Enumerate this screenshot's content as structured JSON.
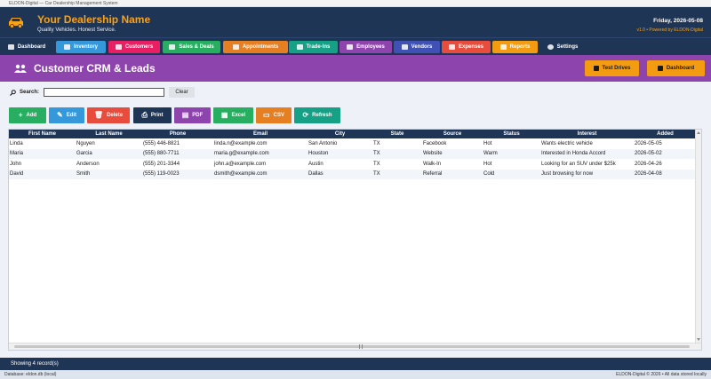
{
  "window": {
    "title": "ELDON-Digital — Car Dealership Management System"
  },
  "header": {
    "title": "Your Dealership Name",
    "tagline": "Quality Vehicles. Honest Service.",
    "date": "Friday, 2026-05-08",
    "version": "v1.0 • Powered by ELDON-Digital"
  },
  "nav": [
    {
      "label": "Dashboard",
      "color": "#1f3556"
    },
    {
      "label": "Inventory",
      "color": "#3498db"
    },
    {
      "label": "Customers",
      "color": "#e91e63"
    },
    {
      "label": "Sales & Deals",
      "color": "#27ae60"
    },
    {
      "label": "Appointments",
      "color": "#e67e22"
    },
    {
      "label": "Trade-Ins",
      "color": "#16a085"
    },
    {
      "label": "Employees",
      "color": "#8e44ad"
    },
    {
      "label": "Vendors",
      "color": "#3f51b5"
    },
    {
      "label": "Expenses",
      "color": "#e74c3c"
    },
    {
      "label": "Reports",
      "color": "#f39c12"
    },
    {
      "label": "Settings",
      "color": "#1f3556"
    }
  ],
  "page": {
    "title": "Customer CRM & Leads",
    "test_drives_label": "Test Drives",
    "dashboard_label": "Dashboard"
  },
  "search": {
    "label": "Search:",
    "value": "",
    "clear_label": "Clear"
  },
  "actions": [
    {
      "label": "Add",
      "icon": "+",
      "color": "#27ae60"
    },
    {
      "label": "Edit",
      "icon": "✎",
      "color": "#3498db"
    },
    {
      "label": "Delete",
      "icon": "🗑",
      "color": "#e74c3c"
    },
    {
      "label": "Print",
      "icon": "⎙",
      "color": "#1f3556"
    },
    {
      "label": "PDF",
      "icon": "▤",
      "color": "#8e44ad"
    },
    {
      "label": "Excel",
      "icon": "▦",
      "color": "#27ae60"
    },
    {
      "label": "CSV",
      "icon": "▭",
      "color": "#e67e22"
    },
    {
      "label": "Refresh",
      "icon": "⟳",
      "color": "#16a085"
    }
  ],
  "table": {
    "columns": [
      "First Name",
      "Last Name",
      "Phone",
      "Email",
      "City",
      "State",
      "Source",
      "Status",
      "Interest",
      "Added"
    ],
    "rows": [
      [
        "Linda",
        "Nguyen",
        "(555) 446-8821",
        "linda.n@example.com",
        "San Antonio",
        "TX",
        "Facebook",
        "Hot",
        "Wants electric vehicle",
        "2026-05-05"
      ],
      [
        "Maria",
        "Garcia",
        "(555) 880-7711",
        "maria.g@example.com",
        "Houston",
        "TX",
        "Website",
        "Warm",
        "Interested in Honda Accord",
        "2026-05-02"
      ],
      [
        "John",
        "Anderson",
        "(555) 201-3344",
        "john.a@example.com",
        "Austin",
        "TX",
        "Walk-In",
        "Hot",
        "Looking for an SUV under $25k",
        "2026-04-26"
      ],
      [
        "David",
        "Smith",
        "(555) 119-0023",
        "dsmith@example.com",
        "Dallas",
        "TX",
        "Referral",
        "Cold",
        "Just browsing for now",
        "2026-04-08"
      ]
    ]
  },
  "status": {
    "text": "Showing 4 record(s)"
  },
  "footer": {
    "left": "Database: eldon.db (local)",
    "right": "ELDON-Digital © 2026 • All data stored locally"
  }
}
